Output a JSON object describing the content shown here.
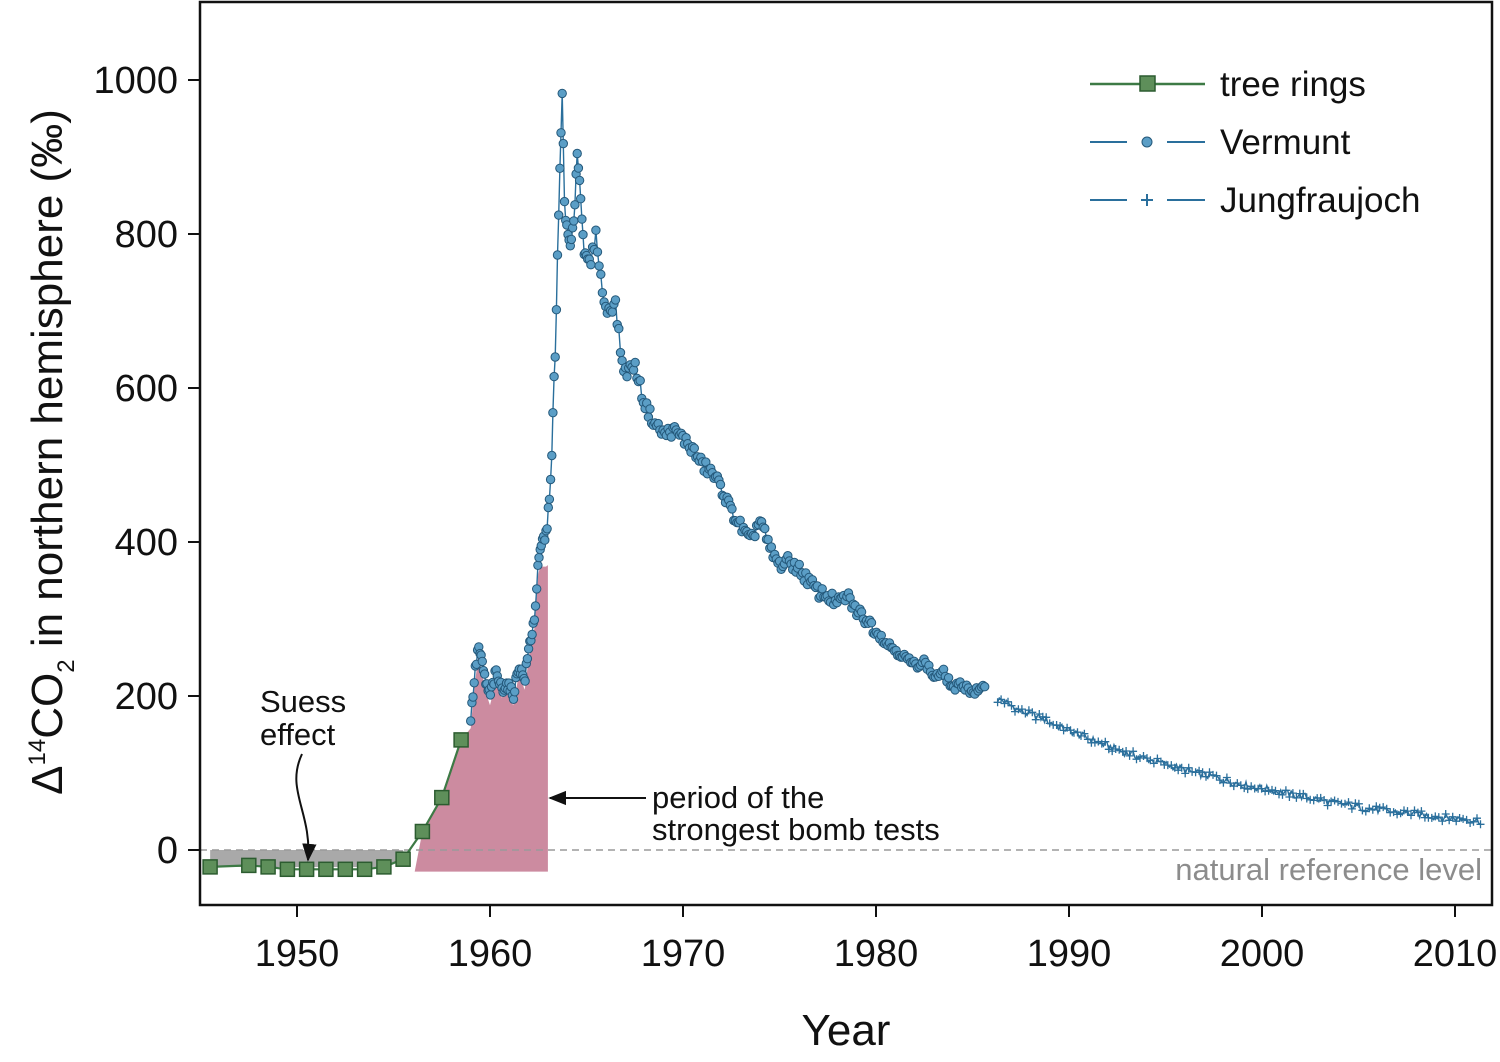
{
  "chart_data": {
    "type": "line",
    "xlabel": "Year",
    "ylabel_parts": {
      "delta": "Δ",
      "iso": "14",
      "co": "CO",
      "sub": "2",
      "rest": " in northern hemisphere  (‰)"
    },
    "xlim": [
      1945.5,
      2012
    ],
    "ylim": [
      -70,
      1100
    ],
    "x_ticks": [
      1950,
      1960,
      1970,
      1980,
      1990,
      2000,
      2010
    ],
    "y_ticks": [
      0,
      200,
      400,
      600,
      800,
      1000
    ],
    "grid": false,
    "legend_position": "top-right",
    "colors": {
      "tree_rings_line": "#3d7a45",
      "tree_rings_marker": "#5e8f5a",
      "measurement": "#2a6f9c",
      "vermunt_marker": "#5b9ec6",
      "bomb_period_fill": "#cc8ba0",
      "suess_fill": "#9a9a9a",
      "reference_line": "#9a9a9a"
    },
    "legend": [
      {
        "label": "tree rings",
        "marker": "square"
      },
      {
        "label": "Vermunt",
        "marker": "circle"
      },
      {
        "label": "Jungfraujoch",
        "marker": "plus"
      }
    ],
    "series": [
      {
        "name": "tree rings",
        "x": [
          1945.5,
          1947.5,
          1948.5,
          1949.5,
          1950.5,
          1951.5,
          1952.5,
          1953.5,
          1954.5,
          1955.5,
          1956.5,
          1957.5,
          1958.5
        ],
        "y": [
          -22,
          -20,
          -22,
          -25,
          -25,
          -25,
          -25,
          -25,
          -22,
          -12,
          24,
          68,
          143
        ]
      },
      {
        "name": "Vermunt",
        "anchors": [
          [
            1959.0,
            170
          ],
          [
            1959.2,
            225
          ],
          [
            1959.4,
            265
          ],
          [
            1959.6,
            240
          ],
          [
            1959.8,
            215
          ],
          [
            1960.0,
            200
          ],
          [
            1960.3,
            230
          ],
          [
            1960.6,
            210
          ],
          [
            1960.9,
            215
          ],
          [
            1961.2,
            200
          ],
          [
            1961.5,
            240
          ],
          [
            1961.8,
            220
          ],
          [
            1962.0,
            260
          ],
          [
            1962.3,
            300
          ],
          [
            1962.5,
            370
          ],
          [
            1962.7,
            400
          ],
          [
            1962.9,
            410
          ],
          [
            1963.0,
            430
          ],
          [
            1963.1,
            470
          ],
          [
            1963.2,
            510
          ],
          [
            1963.3,
            600
          ],
          [
            1963.4,
            650
          ],
          [
            1963.5,
            770
          ],
          [
            1963.6,
            870
          ],
          [
            1963.7,
            940
          ],
          [
            1963.75,
            990
          ],
          [
            1963.85,
            845
          ],
          [
            1964.0,
            800
          ],
          [
            1964.2,
            780
          ],
          [
            1964.4,
            840
          ],
          [
            1964.5,
            910
          ],
          [
            1964.7,
            850
          ],
          [
            1964.9,
            770
          ],
          [
            1965.2,
            760
          ],
          [
            1965.5,
            800
          ],
          [
            1965.8,
            730
          ],
          [
            1966.0,
            700
          ],
          [
            1966.5,
            710
          ],
          [
            1966.8,
            640
          ],
          [
            1967.0,
            620
          ],
          [
            1967.5,
            630
          ],
          [
            1968.0,
            580
          ],
          [
            1968.5,
            555
          ],
          [
            1969.0,
            540
          ],
          [
            1969.5,
            545
          ],
          [
            1970.0,
            535
          ],
          [
            1970.5,
            520
          ],
          [
            1971.0,
            500
          ],
          [
            1971.5,
            490
          ],
          [
            1972.0,
            470
          ],
          [
            1972.5,
            440
          ],
          [
            1973.0,
            420
          ],
          [
            1973.5,
            400
          ],
          [
            1974.0,
            430
          ],
          [
            1974.5,
            390
          ],
          [
            1975.0,
            370
          ],
          [
            1975.5,
            375
          ],
          [
            1976.0,
            365
          ],
          [
            1976.5,
            350
          ],
          [
            1977.0,
            335
          ],
          [
            1977.5,
            330
          ],
          [
            1978.0,
            320
          ],
          [
            1978.5,
            330
          ],
          [
            1979.0,
            310
          ],
          [
            1979.5,
            300
          ],
          [
            1980.0,
            285
          ],
          [
            1980.5,
            270
          ],
          [
            1981.0,
            260
          ],
          [
            1981.5,
            250
          ],
          [
            1982.0,
            240
          ],
          [
            1982.5,
            245
          ],
          [
            1983.0,
            225
          ],
          [
            1983.5,
            230
          ],
          [
            1984.0,
            210
          ],
          [
            1984.5,
            215
          ],
          [
            1985.0,
            205
          ],
          [
            1985.7,
            210
          ]
        ]
      },
      {
        "name": "Jungfraujoch",
        "anchors": [
          [
            1986.5,
            195
          ],
          [
            1987.5,
            180
          ],
          [
            1988.5,
            172
          ],
          [
            1989.5,
            160
          ],
          [
            1990.5,
            150
          ],
          [
            1991.5,
            140
          ],
          [
            1992.5,
            130
          ],
          [
            1993.5,
            122
          ],
          [
            1994.5,
            115
          ],
          [
            1995.5,
            108
          ],
          [
            1996.5,
            100
          ],
          [
            1997.5,
            95
          ],
          [
            1998.5,
            88
          ],
          [
            1999.5,
            82
          ],
          [
            2000.5,
            78
          ],
          [
            2001.5,
            72
          ],
          [
            2002.5,
            68
          ],
          [
            2003.5,
            62
          ],
          [
            2004.5,
            58
          ],
          [
            2005.5,
            54
          ],
          [
            2006.5,
            50
          ],
          [
            2007.5,
            48
          ],
          [
            2008.5,
            45
          ],
          [
            2009.5,
            42
          ],
          [
            2010.5,
            40
          ],
          [
            2011.3,
            38
          ]
        ]
      }
    ],
    "annotations": {
      "suess_line1": "Suess",
      "suess_line2": "effect",
      "bomb_line1": "period of the",
      "bomb_line2": "strongest bomb tests",
      "reference_label": "natural reference level"
    }
  }
}
